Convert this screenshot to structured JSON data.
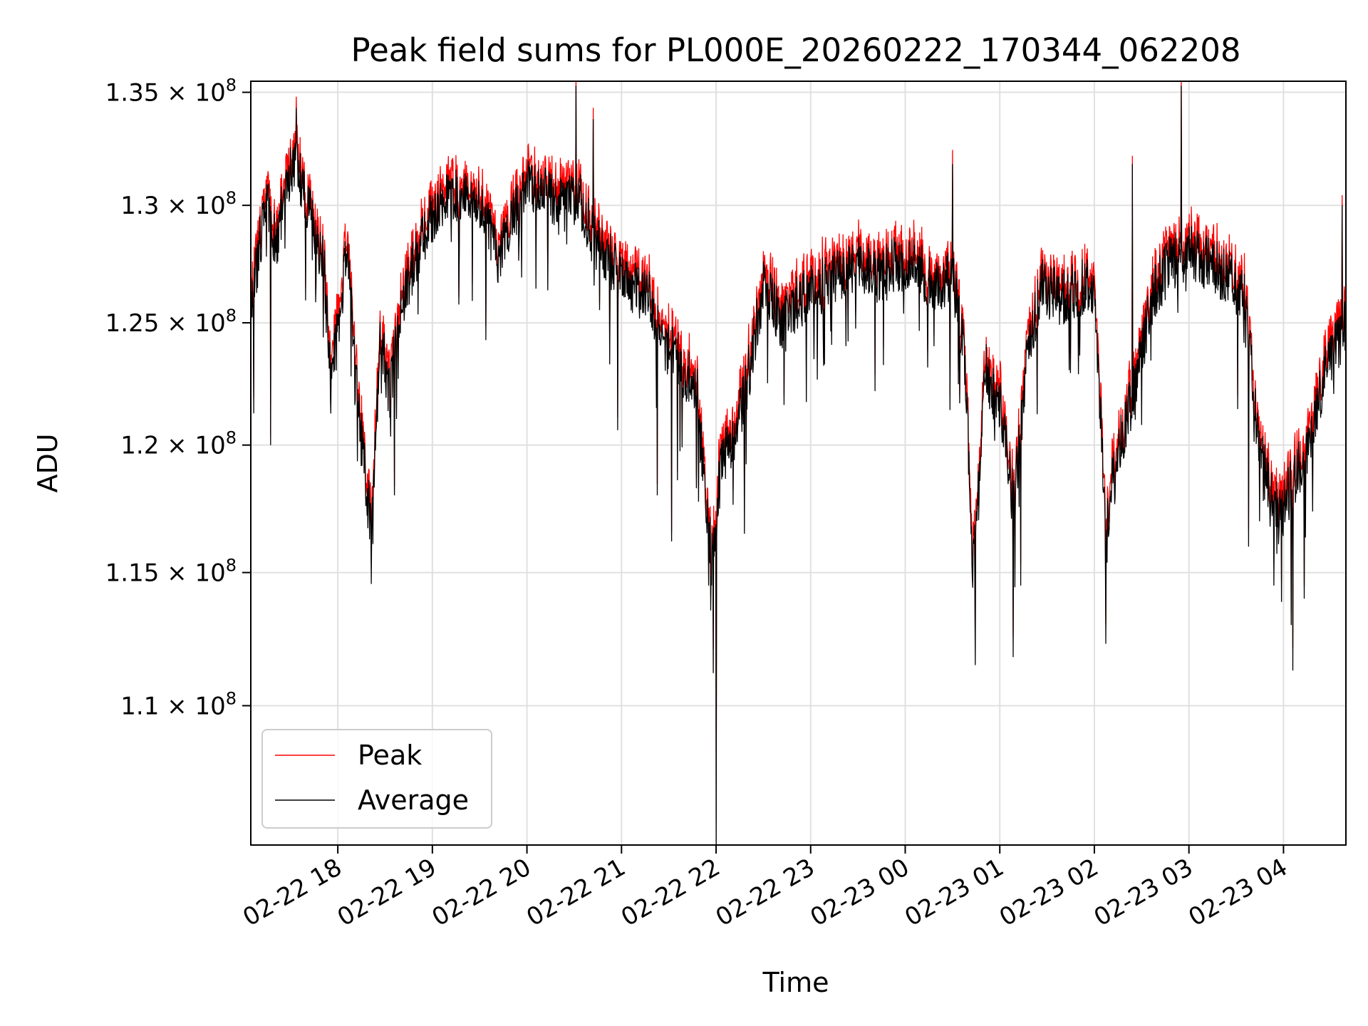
{
  "chart_data": {
    "type": "line",
    "title": "Peak field sums for PL000E_20260222_170344_062208",
    "xlabel": "Time",
    "ylabel": "ADU",
    "y_scale": "log",
    "ylim": [
      105000000,
      135500000
    ],
    "xlim_hours": [
      17.08,
      28.66
    ],
    "grid": true,
    "legend_location": "lower-left",
    "x_ticks": [
      {
        "hour": 18,
        "label": "02-22 18"
      },
      {
        "hour": 19,
        "label": "02-22 19"
      },
      {
        "hour": 20,
        "label": "02-22 20"
      },
      {
        "hour": 21,
        "label": "02-22 21"
      },
      {
        "hour": 22,
        "label": "02-22 22"
      },
      {
        "hour": 23,
        "label": "02-22 23"
      },
      {
        "hour": 24,
        "label": "02-23 00"
      },
      {
        "hour": 25,
        "label": "02-23 01"
      },
      {
        "hour": 26,
        "label": "02-23 02"
      },
      {
        "hour": 27,
        "label": "02-23 03"
      },
      {
        "hour": 28,
        "label": "02-23 04"
      }
    ],
    "y_ticks": [
      {
        "value": 110000000,
        "mantissa": "1.1",
        "exponent": "8"
      },
      {
        "value": 115000000,
        "mantissa": "1.15",
        "exponent": "8"
      },
      {
        "value": 120000000,
        "mantissa": "1.2",
        "exponent": "8"
      },
      {
        "value": 125000000,
        "mantissa": "1.25",
        "exponent": "8"
      },
      {
        "value": 130000000,
        "mantissa": "1.3",
        "exponent": "8"
      },
      {
        "value": 135000000,
        "mantissa": "1.35",
        "exponent": "8"
      }
    ],
    "y_tick_base": "10",
    "series": [
      {
        "name": "Peak",
        "color": "#ff0000",
        "offset": 700000
      },
      {
        "name": "Average",
        "color": "#000000",
        "offset": 0
      }
    ],
    "average_profile": [
      [
        17.08,
        125.5
      ],
      [
        17.25,
        130.5
      ],
      [
        17.35,
        128.0
      ],
      [
        17.45,
        131.0
      ],
      [
        17.55,
        132.0
      ],
      [
        17.65,
        130.5
      ],
      [
        17.75,
        129.0
      ],
      [
        17.85,
        127.5
      ],
      [
        17.92,
        123.0
      ],
      [
        18.0,
        124.5
      ],
      [
        18.1,
        128.5
      ],
      [
        18.2,
        122.0
      ],
      [
        18.3,
        118.5
      ],
      [
        18.36,
        116.5
      ],
      [
        18.45,
        124.5
      ],
      [
        18.55,
        122.0
      ],
      [
        18.65,
        125.5
      ],
      [
        18.8,
        127.5
      ],
      [
        19.0,
        129.5
      ],
      [
        19.2,
        130.5
      ],
      [
        19.4,
        130.5
      ],
      [
        19.55,
        129.5
      ],
      [
        19.7,
        127.5
      ],
      [
        19.85,
        129.5
      ],
      [
        20.0,
        131.0
      ],
      [
        20.2,
        130.5
      ],
      [
        20.4,
        130.0
      ],
      [
        20.55,
        130.5
      ],
      [
        20.7,
        128.5
      ],
      [
        20.9,
        127.5
      ],
      [
        21.1,
        126.5
      ],
      [
        21.3,
        126.0
      ],
      [
        21.45,
        124.0
      ],
      [
        21.6,
        123.5
      ],
      [
        21.8,
        122.0
      ],
      [
        21.95,
        115.5
      ],
      [
        22.05,
        119.0
      ],
      [
        22.2,
        120.5
      ],
      [
        22.35,
        123.0
      ],
      [
        22.5,
        126.5
      ],
      [
        22.7,
        125.0
      ],
      [
        22.9,
        126.0
      ],
      [
        23.1,
        126.5
      ],
      [
        23.3,
        127.0
      ],
      [
        23.5,
        127.5
      ],
      [
        23.7,
        127.0
      ],
      [
        23.9,
        127.5
      ],
      [
        24.1,
        127.5
      ],
      [
        24.3,
        126.5
      ],
      [
        24.5,
        127.0
      ],
      [
        24.62,
        124.0
      ],
      [
        24.72,
        115.0
      ],
      [
        24.85,
        123.0
      ],
      [
        25.0,
        121.5
      ],
      [
        25.15,
        117.5
      ],
      [
        25.3,
        124.0
      ],
      [
        25.45,
        126.5
      ],
      [
        25.65,
        126.0
      ],
      [
        25.85,
        126.5
      ],
      [
        26.0,
        126.5
      ],
      [
        26.12,
        117.0
      ],
      [
        26.3,
        120.5
      ],
      [
        26.45,
        122.5
      ],
      [
        26.6,
        126.0
      ],
      [
        26.8,
        127.5
      ],
      [
        27.0,
        128.0
      ],
      [
        27.2,
        127.5
      ],
      [
        27.4,
        127.0
      ],
      [
        27.6,
        126.0
      ],
      [
        27.72,
        120.5
      ],
      [
        27.85,
        118.0
      ],
      [
        28.0,
        117.5
      ],
      [
        28.15,
        119.0
      ],
      [
        28.3,
        120.5
      ],
      [
        28.45,
        123.0
      ],
      [
        28.66,
        125.0
      ]
    ],
    "dips": [
      {
        "hour": 17.29,
        "value": 120.0
      },
      {
        "hour": 18.37,
        "value": 116.1
      },
      {
        "hour": 18.6,
        "value": 118.0
      },
      {
        "hour": 20.96,
        "value": 120.6
      },
      {
        "hour": 21.38,
        "value": 118.0
      },
      {
        "hour": 21.53,
        "value": 116.2
      },
      {
        "hour": 21.92,
        "value": 114.5
      },
      {
        "hour": 21.97,
        "value": 111.2
      },
      {
        "hour": 22.0,
        "value": 105.0
      },
      {
        "hour": 22.3,
        "value": 116.5
      },
      {
        "hour": 24.74,
        "value": 111.5
      },
      {
        "hour": 25.14,
        "value": 111.8
      },
      {
        "hour": 25.22,
        "value": 114.5
      },
      {
        "hour": 26.12,
        "value": 112.3
      },
      {
        "hour": 26.4,
        "value": 114.7
      },
      {
        "hour": 27.63,
        "value": 116.0
      },
      {
        "hour": 27.9,
        "value": 114.5
      },
      {
        "hour": 28.08,
        "value": 113.0
      },
      {
        "hour": 28.1,
        "value": 111.3
      },
      {
        "hour": 28.22,
        "value": 114.0
      }
    ],
    "spikes": [
      {
        "hour": 17.56,
        "value": 134.3
      },
      {
        "hour": 20.52,
        "value": 135.3
      },
      {
        "hour": 20.7,
        "value": 133.8
      },
      {
        "hour": 24.5,
        "value": 131.8
      },
      {
        "hour": 26.92,
        "value": 135.3
      },
      {
        "hour": 26.4,
        "value": 131.8
      },
      {
        "hour": 28.62,
        "value": 130.0
      }
    ]
  },
  "legend": {
    "peak_label": "Peak",
    "average_label": "Average"
  }
}
